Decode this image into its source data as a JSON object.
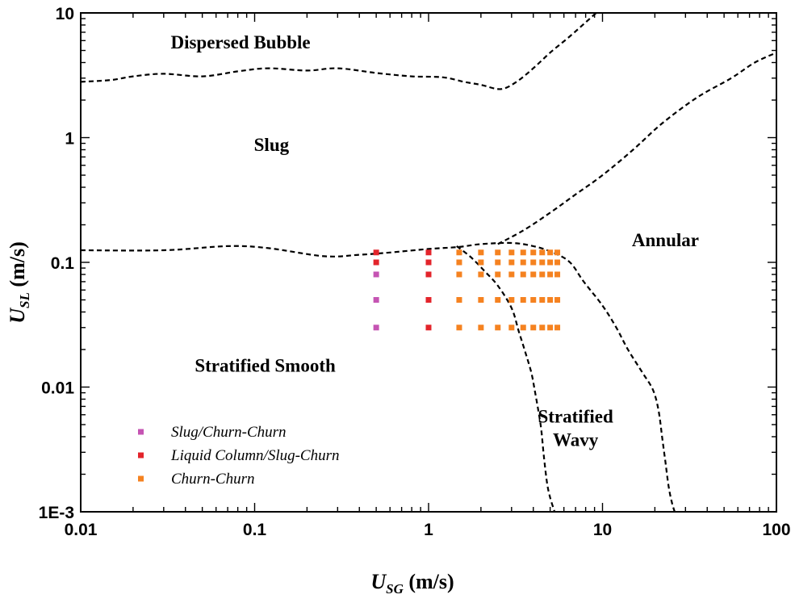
{
  "chart_data": {
    "type": "scatter",
    "title": "",
    "xlabel": {
      "main": "U",
      "sub": "SG",
      "unit": " (m/s)"
    },
    "ylabel": {
      "main": "U",
      "sub": "SL",
      "unit": " (m/s)"
    },
    "xscale": "log",
    "yscale": "log",
    "xlim": [
      0.01,
      100
    ],
    "ylim": [
      0.001,
      10
    ],
    "grid": false,
    "legend_position": "bottom-left",
    "x_ticks": [
      {
        "value": 0.01,
        "label": "0.01"
      },
      {
        "value": 0.1,
        "label": "0.1"
      },
      {
        "value": 1,
        "label": "1"
      },
      {
        "value": 10,
        "label": "10"
      },
      {
        "value": 100,
        "label": "100"
      }
    ],
    "y_ticks": [
      {
        "value": 0.001,
        "label": "1E-3"
      },
      {
        "value": 0.01,
        "label": "0.01"
      },
      {
        "value": 0.1,
        "label": "0.1"
      },
      {
        "value": 1,
        "label": "1"
      },
      {
        "value": 10,
        "label": "10"
      }
    ],
    "regions": [
      {
        "name": "dispersed-bubble",
        "lines": [
          "Dispersed Bubble"
        ],
        "x": 0.083,
        "y": 5.2,
        "anchor": "middle"
      },
      {
        "name": "slug",
        "lines": [
          "Slug"
        ],
        "x": 0.125,
        "y": 0.78,
        "anchor": "middle"
      },
      {
        "name": "annular",
        "lines": [
          "Annular"
        ],
        "x": 23,
        "y": 0.135,
        "anchor": "middle"
      },
      {
        "name": "stratified-smooth",
        "lines": [
          "Stratified Smooth"
        ],
        "x": 0.115,
        "y": 0.0133,
        "anchor": "middle"
      },
      {
        "name": "stratified-wavy",
        "lines": [
          "Stratified",
          "Wavy"
        ],
        "x": 7.0,
        "y": 0.0052,
        "anchor": "middle"
      }
    ],
    "boundaries": [
      {
        "name": "dispersed-bubble-boundary",
        "points": [
          [
            0.01,
            2.8
          ],
          [
            0.015,
            2.9
          ],
          [
            0.02,
            3.1
          ],
          [
            0.03,
            3.25
          ],
          [
            0.05,
            3.1
          ],
          [
            0.08,
            3.4
          ],
          [
            0.12,
            3.6
          ],
          [
            0.2,
            3.45
          ],
          [
            0.3,
            3.6
          ],
          [
            0.5,
            3.3
          ],
          [
            0.8,
            3.1
          ],
          [
            1.2,
            3.05
          ],
          [
            1.6,
            2.8
          ],
          [
            2.0,
            2.65
          ],
          [
            2.6,
            2.45
          ],
          [
            3.2,
            2.8
          ],
          [
            4.0,
            3.6
          ],
          [
            5.0,
            4.8
          ],
          [
            6.5,
            6.5
          ],
          [
            8.0,
            8.4
          ],
          [
            9.2,
            10
          ]
        ]
      },
      {
        "name": "stratified-upper-boundary",
        "points": [
          [
            0.01,
            0.125
          ],
          [
            0.03,
            0.125
          ],
          [
            0.07,
            0.135
          ],
          [
            0.12,
            0.13
          ],
          [
            0.25,
            0.112
          ],
          [
            0.4,
            0.115
          ],
          [
            0.6,
            0.12
          ],
          [
            1.0,
            0.128
          ],
          [
            1.5,
            0.133
          ],
          [
            2.0,
            0.14
          ],
          [
            3.0,
            0.143
          ],
          [
            4.0,
            0.135
          ],
          [
            5.2,
            0.12
          ],
          [
            6.5,
            0.1
          ],
          [
            7.8,
            0.07
          ],
          [
            10,
            0.045
          ],
          [
            12,
            0.03
          ],
          [
            14,
            0.02
          ],
          [
            17,
            0.013
          ],
          [
            19.5,
            0.0095
          ],
          [
            21,
            0.0065
          ],
          [
            22,
            0.004
          ],
          [
            23,
            0.0025
          ],
          [
            24,
            0.0016
          ],
          [
            25,
            0.0012
          ],
          [
            26,
            0.001
          ]
        ]
      },
      {
        "name": "annular-boundary",
        "points": [
          [
            2.5,
            0.14
          ],
          [
            3.5,
            0.18
          ],
          [
            5.0,
            0.25
          ],
          [
            7.0,
            0.35
          ],
          [
            10,
            0.5
          ],
          [
            15,
            0.8
          ],
          [
            22,
            1.3
          ],
          [
            35,
            2.1
          ],
          [
            55,
            3.0
          ],
          [
            75,
            4.0
          ],
          [
            100,
            4.8
          ]
        ]
      },
      {
        "name": "stratified-wavy-boundary",
        "points": [
          [
            1.45,
            0.135
          ],
          [
            1.75,
            0.11
          ],
          [
            2.1,
            0.085
          ],
          [
            2.5,
            0.065
          ],
          [
            3.0,
            0.043
          ],
          [
            3.3,
            0.028
          ],
          [
            3.6,
            0.019
          ],
          [
            3.9,
            0.013
          ],
          [
            4.1,
            0.009
          ],
          [
            4.3,
            0.0062
          ],
          [
            4.45,
            0.0045
          ],
          [
            4.6,
            0.0028
          ],
          [
            4.8,
            0.0017
          ],
          [
            5.0,
            0.0013
          ],
          [
            5.3,
            0.001
          ]
        ]
      }
    ],
    "series": [
      {
        "name": "Slug/Churn-Churn",
        "color": "#C554B3",
        "points": [
          [
            0.5,
            0.08
          ],
          [
            0.5,
            0.05
          ],
          [
            0.5,
            0.03
          ]
        ]
      },
      {
        "name": "Liquid Column/Slug-Churn",
        "color": "#E3242B",
        "points": [
          [
            0.5,
            0.12
          ],
          [
            0.5,
            0.1
          ],
          [
            1,
            0.12
          ],
          [
            1,
            0.1
          ],
          [
            1,
            0.08
          ],
          [
            1,
            0.05
          ],
          [
            1,
            0.03
          ]
        ]
      },
      {
        "name": "Churn-Churn",
        "color": "#F58220",
        "points": [
          [
            1.5,
            0.12
          ],
          [
            2.0,
            0.12
          ],
          [
            2.5,
            0.12
          ],
          [
            3.0,
            0.12
          ],
          [
            3.5,
            0.12
          ],
          [
            4.0,
            0.12
          ],
          [
            4.5,
            0.12
          ],
          [
            5.0,
            0.12
          ],
          [
            5.5,
            0.12
          ],
          [
            1.5,
            0.1
          ],
          [
            2.0,
            0.1
          ],
          [
            2.5,
            0.1
          ],
          [
            3.0,
            0.1
          ],
          [
            3.5,
            0.1
          ],
          [
            4.0,
            0.1
          ],
          [
            4.5,
            0.1
          ],
          [
            5.0,
            0.1
          ],
          [
            5.5,
            0.1
          ],
          [
            1.5,
            0.08
          ],
          [
            2.0,
            0.08
          ],
          [
            2.5,
            0.08
          ],
          [
            3.0,
            0.08
          ],
          [
            3.5,
            0.08
          ],
          [
            4.0,
            0.08
          ],
          [
            4.5,
            0.08
          ],
          [
            5.0,
            0.08
          ],
          [
            5.5,
            0.08
          ],
          [
            1.5,
            0.05
          ],
          [
            2.0,
            0.05
          ],
          [
            2.5,
            0.05
          ],
          [
            3.0,
            0.05
          ],
          [
            3.5,
            0.05
          ],
          [
            4.0,
            0.05
          ],
          [
            4.5,
            0.05
          ],
          [
            5.0,
            0.05
          ],
          [
            5.5,
            0.05
          ],
          [
            1.5,
            0.03
          ],
          [
            2.0,
            0.03
          ],
          [
            2.5,
            0.03
          ],
          [
            3.0,
            0.03
          ],
          [
            3.5,
            0.03
          ],
          [
            4.0,
            0.03
          ],
          [
            4.5,
            0.03
          ],
          [
            5.0,
            0.03
          ],
          [
            5.5,
            0.03
          ]
        ]
      }
    ]
  }
}
